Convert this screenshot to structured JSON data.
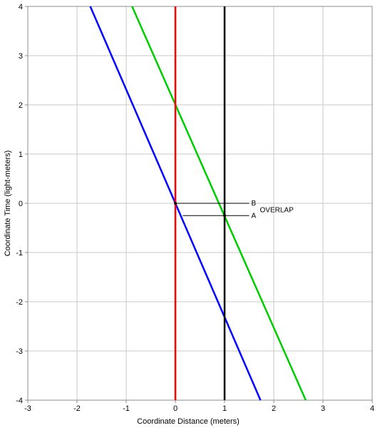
{
  "chart_data": {
    "type": "line",
    "title": "",
    "xlabel": "Coordinate Distance (meters)",
    "ylabel": "Coordinate Time (light-meters)",
    "xlim": [
      -3,
      4
    ],
    "ylim": [
      -4,
      4
    ],
    "xticks": [
      "-3",
      "-2",
      "-1",
      "0",
      "1",
      "2",
      "3",
      "4"
    ],
    "yticks": [
      "-4",
      "-3",
      "-2",
      "-1",
      "0",
      "1",
      "2",
      "3",
      "4"
    ],
    "grid": true,
    "series": [
      {
        "color": "#0000ff",
        "x": [
          -1.73,
          1.73
        ],
        "y": [
          4,
          -4
        ]
      },
      {
        "color": "#00cc00",
        "x": [
          -0.88,
          2.65
        ],
        "y": [
          4,
          -4
        ]
      },
      {
        "color": "#ff0000",
        "x": [
          0,
          0
        ],
        "y": [
          4,
          -4
        ]
      },
      {
        "color": "#000000",
        "x": [
          1,
          1
        ],
        "y": [
          4,
          -4
        ]
      }
    ],
    "annotations": {
      "line_b": {
        "label": "B",
        "x": [
          0,
          1.5
        ],
        "y": [
          0,
          0
        ]
      },
      "line_a": {
        "label": "A",
        "x": [
          0.15,
          1.5
        ],
        "y": [
          -0.25,
          -0.25
        ]
      },
      "bracket_label": "OVERLAP",
      "dots": [
        {
          "x": 0,
          "y": 0
        },
        {
          "x": 1,
          "y": -0.25
        }
      ]
    }
  }
}
